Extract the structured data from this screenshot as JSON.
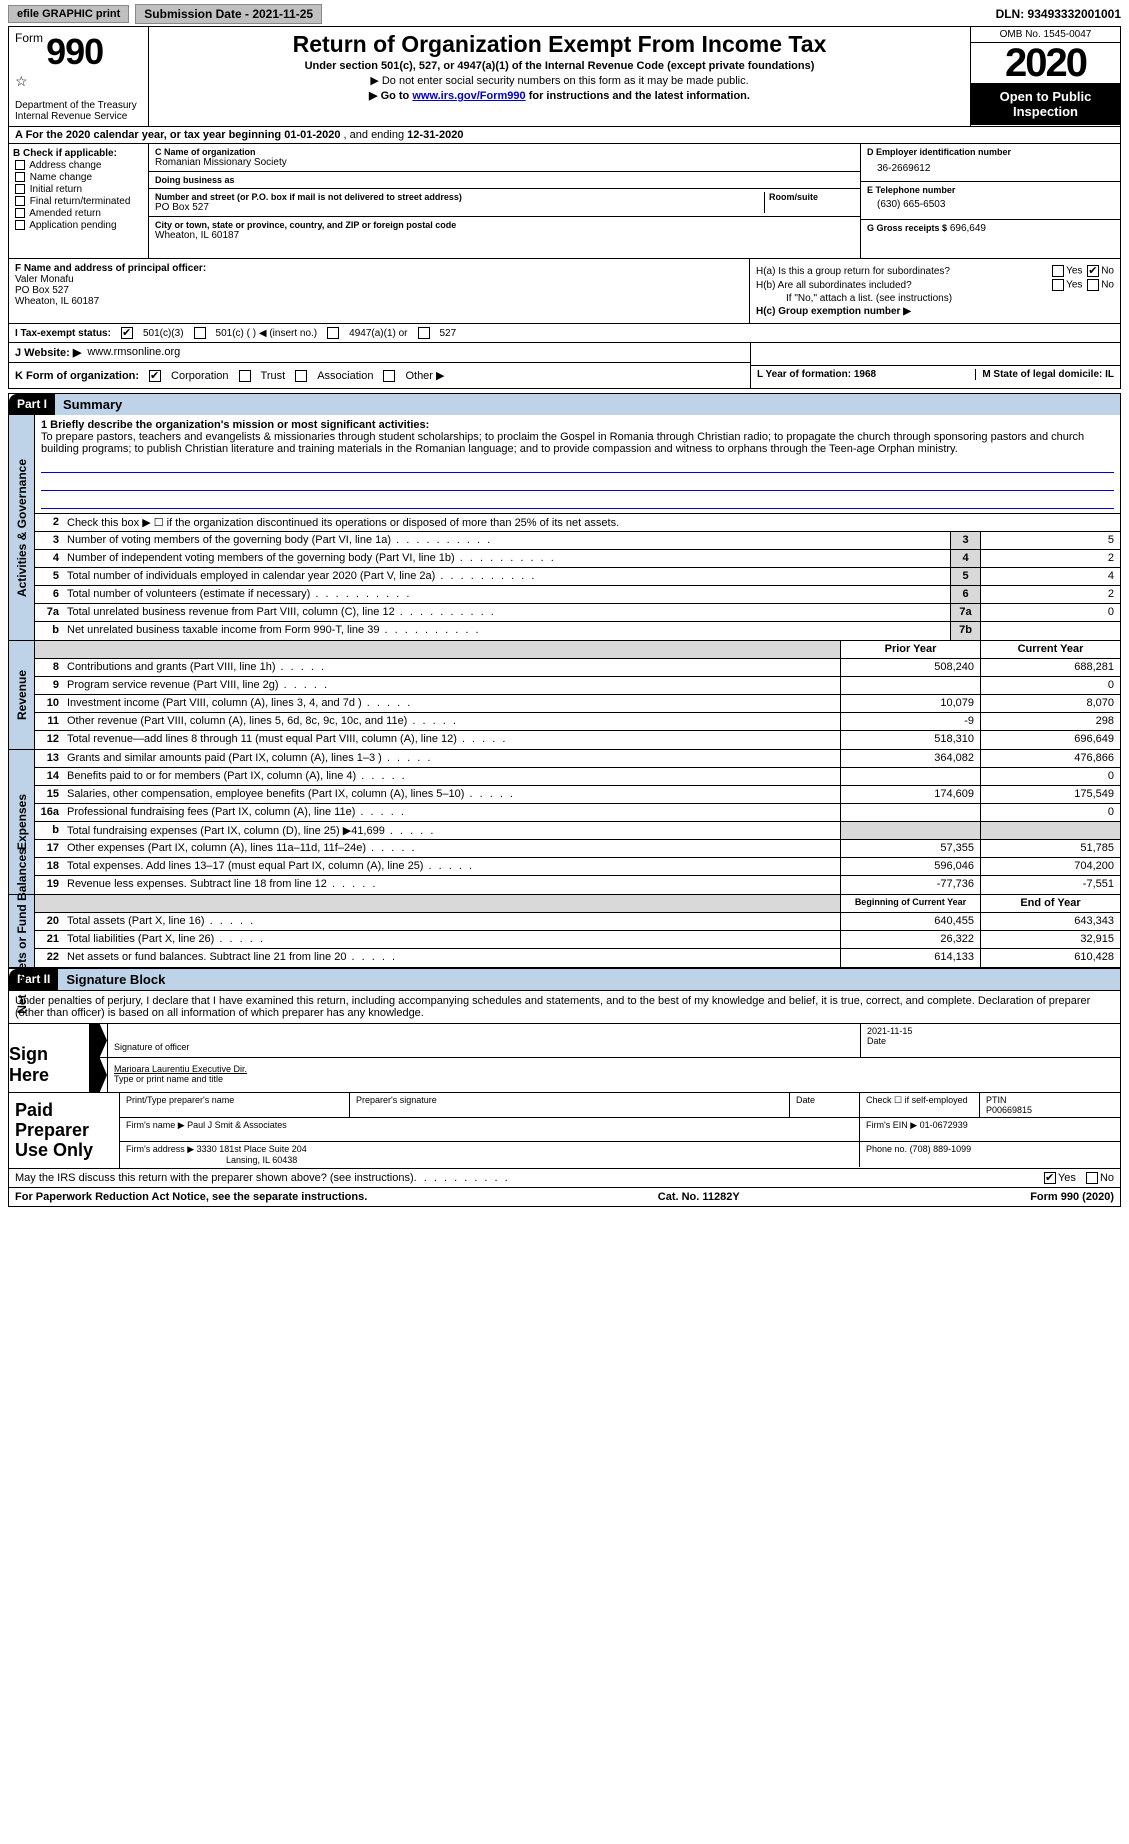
{
  "topbar": {
    "efile_btn": "efile GRAPHIC print",
    "submission_date_label": "Submission Date - 2021-11-25",
    "dln": "DLN: 93493332001001"
  },
  "header": {
    "form_word": "Form",
    "form_num": "990",
    "title": "Return of Organization Exempt From Income Tax",
    "sub1": "Under section 501(c), 527, or 4947(a)(1) of the Internal Revenue Code (except private foundations)",
    "sub2": "▶ Do not enter social security numbers on this form as it may be made public.",
    "sub3_pre": "▶ Go to ",
    "sub3_link": "www.irs.gov/Form990",
    "sub3_post": " for instructions and the latest information.",
    "dept": "Department of the Treasury\nInternal Revenue Service",
    "omb": "OMB No. 1545-0047",
    "year": "2020",
    "open_pub": "Open to Public Inspection"
  },
  "rowA": {
    "text_a": "A  For the 2020 calendar year, or tax year beginning ",
    "begin": "01-01-2020",
    "mid": "   , and ending ",
    "end": "12-31-2020"
  },
  "colB": {
    "hdr": "B Check if applicable:",
    "items": [
      "Address change",
      "Name change",
      "Initial return",
      "Final return/terminated",
      "Amended return",
      "Application pending"
    ],
    "pending_note": ""
  },
  "colC": {
    "name_lbl": "C Name of organization",
    "name": "Romanian Missionary Society",
    "dba_lbl": "Doing business as",
    "dba": "",
    "addr_lbl": "Number and street (or P.O. box if mail is not delivered to street address)",
    "room_lbl": "Room/suite",
    "addr": "PO Box 527",
    "city_lbl": "City or town, state or province, country, and ZIP or foreign postal code",
    "city": "Wheaton, IL  60187"
  },
  "colDEG": {
    "d_lbl": "D Employer identification number",
    "d_val": "36-2669612",
    "e_lbl": "E Telephone number",
    "e_val": "(630) 665-6503",
    "g_lbl": "G Gross receipts $",
    "g_val": "696,649"
  },
  "rowF": {
    "lbl": "F  Name and address of principal officer:",
    "name": "Valer Monafu",
    "addr1": "PO Box 527",
    "addr2": "Wheaton, IL  60187"
  },
  "rowH": {
    "ha": "H(a)  Is this a group return for subordinates?",
    "hb": "H(b)  Are all subordinates included?",
    "hb_note": "If \"No,\" attach a list. (see instructions)",
    "hc": "H(c)  Group exemption number ▶",
    "yes": "Yes",
    "no": "No"
  },
  "rowI": {
    "lbl": "I   Tax-exempt status:",
    "o1": "501(c)(3)",
    "o2": "501(c) (  ) ◀ (insert no.)",
    "o3": "4947(a)(1) or",
    "o4": "527"
  },
  "rowJ": {
    "lbl": "J  Website: ▶",
    "val": "www.rmsonline.org"
  },
  "rowK": {
    "lbl": "K Form of organization:",
    "o1": "Corporation",
    "o2": "Trust",
    "o3": "Association",
    "o4": "Other ▶"
  },
  "rowLM": {
    "l": "L Year of formation: 1968",
    "m": "M State of legal domicile: IL"
  },
  "part1": {
    "part": "Part I",
    "title": "Summary",
    "tab1": "Activities & Governance",
    "tab2": "Revenue",
    "tab3": "Expenses",
    "tab4": "Net Assets or Fund Balances",
    "l1_lbl": "1  Briefly describe the organization's mission or most significant activities:",
    "l1_txt": "To prepare pastors, teachers and evangelists & missionaries through student scholarships; to proclaim the Gospel in Romania through Christian radio; to propagate the church through sponsoring pastors and church building programs; to publish Christian literature and training materials in the Romanian language; and to provide compassion and witness to orphans through the Teen-age Orphan ministry.",
    "l2": "Check this box ▶ ☐  if the organization discontinued its operations or disposed of more than 25% of its net assets.",
    "rows_gov": [
      {
        "n": "3",
        "t": "Number of voting members of the governing body (Part VI, line 1a)",
        "b": "3",
        "v": "5"
      },
      {
        "n": "4",
        "t": "Number of independent voting members of the governing body (Part VI, line 1b)",
        "b": "4",
        "v": "2"
      },
      {
        "n": "5",
        "t": "Total number of individuals employed in calendar year 2020 (Part V, line 2a)",
        "b": "5",
        "v": "4"
      },
      {
        "n": "6",
        "t": "Total number of volunteers (estimate if necessary)",
        "b": "6",
        "v": "2"
      },
      {
        "n": "7a",
        "t": "Total unrelated business revenue from Part VIII, column (C), line 12",
        "b": "7a",
        "v": "0"
      },
      {
        "n": "b",
        "t": "Net unrelated business taxable income from Form 990-T, line 39",
        "b": "7b",
        "v": ""
      }
    ],
    "hdr_prior": "Prior Year",
    "hdr_curr": "Current Year",
    "rows_rev": [
      {
        "n": "8",
        "t": "Contributions and grants (Part VIII, line 1h)",
        "p": "508,240",
        "c": "688,281"
      },
      {
        "n": "9",
        "t": "Program service revenue (Part VIII, line 2g)",
        "p": "",
        "c": "0"
      },
      {
        "n": "10",
        "t": "Investment income (Part VIII, column (A), lines 3, 4, and 7d )",
        "p": "10,079",
        "c": "8,070"
      },
      {
        "n": "11",
        "t": "Other revenue (Part VIII, column (A), lines 5, 6d, 8c, 9c, 10c, and 11e)",
        "p": "-9",
        "c": "298"
      },
      {
        "n": "12",
        "t": "Total revenue—add lines 8 through 11 (must equal Part VIII, column (A), line 12)",
        "p": "518,310",
        "c": "696,649"
      }
    ],
    "rows_exp": [
      {
        "n": "13",
        "t": "Grants and similar amounts paid (Part IX, column (A), lines 1–3 )",
        "p": "364,082",
        "c": "476,866"
      },
      {
        "n": "14",
        "t": "Benefits paid to or for members (Part IX, column (A), line 4)",
        "p": "",
        "c": "0"
      },
      {
        "n": "15",
        "t": "Salaries, other compensation, employee benefits (Part IX, column (A), lines 5–10)",
        "p": "174,609",
        "c": "175,549"
      },
      {
        "n": "16a",
        "t": "Professional fundraising fees (Part IX, column (A), line 11e)",
        "p": "",
        "c": "0"
      },
      {
        "n": "b",
        "t": "Total fundraising expenses (Part IX, column (D), line 25) ▶41,699",
        "p": "__shade__",
        "c": "__shade__"
      },
      {
        "n": "17",
        "t": "Other expenses (Part IX, column (A), lines 11a–11d, 11f–24e)",
        "p": "57,355",
        "c": "51,785"
      },
      {
        "n": "18",
        "t": "Total expenses. Add lines 13–17 (must equal Part IX, column (A), line 25)",
        "p": "596,046",
        "c": "704,200"
      },
      {
        "n": "19",
        "t": "Revenue less expenses. Subtract line 18 from line 12",
        "p": "-77,736",
        "c": "-7,551"
      }
    ],
    "hdr_begin": "Beginning of Current Year",
    "hdr_end": "End of Year",
    "rows_net": [
      {
        "n": "20",
        "t": "Total assets (Part X, line 16)",
        "p": "640,455",
        "c": "643,343"
      },
      {
        "n": "21",
        "t": "Total liabilities (Part X, line 26)",
        "p": "26,322",
        "c": "32,915"
      },
      {
        "n": "22",
        "t": "Net assets or fund balances. Subtract line 21 from line 20",
        "p": "614,133",
        "c": "610,428"
      }
    ]
  },
  "part2": {
    "part": "Part II",
    "title": "Signature Block",
    "decl": "Under penalties of perjury, I declare that I have examined this return, including accompanying schedules and statements, and to the best of my knowledge and belief, it is true, correct, and complete. Declaration of preparer (other than officer) is based on all information of which preparer has any knowledge."
  },
  "sign": {
    "label": "Sign Here",
    "sig_of_officer": "Signature of officer",
    "date": "Date",
    "date_val": "2021-11-15",
    "name_title": "Marioara Laurentiu  Executive Dir.",
    "type_name": "Type or print name and title"
  },
  "paid": {
    "label": "Paid Preparer Use Only",
    "pt_name": "Print/Type preparer's name",
    "prep_sig": "Preparer's signature",
    "date": "Date",
    "check_self": "Check ☐ if self-employed",
    "ptin_lbl": "PTIN",
    "ptin": "P00669815",
    "firm_name_lbl": "Firm's name    ▶",
    "firm_name": "Paul J Smit & Associates",
    "firm_ein_lbl": "Firm's EIN ▶",
    "firm_ein": "01-0672939",
    "firm_addr_lbl": "Firm's address ▶",
    "firm_addr": "3330 181st Place Suite 204",
    "firm_city": "Lansing, IL  60438",
    "phone_lbl": "Phone no.",
    "phone": "(708) 889-1099"
  },
  "footer": {
    "irs_q": "May the IRS discuss this return with the preparer shown above? (see instructions)",
    "yes": "Yes",
    "no": "No",
    "paperwork": "For Paperwork Reduction Act Notice, see the separate instructions.",
    "cat": "Cat. No. 11282Y",
    "form": "Form 990 (2020)"
  }
}
